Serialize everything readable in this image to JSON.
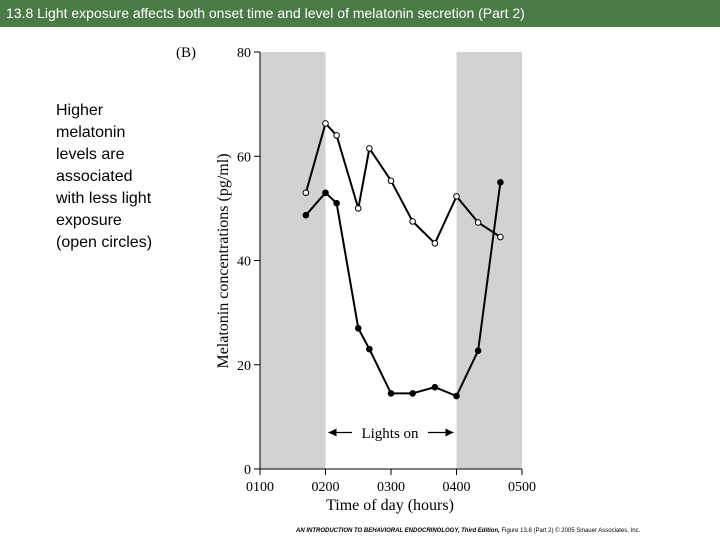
{
  "slide": {
    "title": "13.8  Light exposure affects both onset time and level of melatonin secretion (Part 2)",
    "note": "Higher melatonin levels are associated with less light exposure (open circles)",
    "footer_book": "AN INTRODUCTION TO BEHAVIORAL ENDOCRINOLOGY, Third Edition,",
    "footer_rest": "Figure 13.8 (Part 2)  © 2005 Sinauer Associates, Inc."
  },
  "chart_data": {
    "type": "line",
    "panel_label": "(B)",
    "xlabel": "Time of day (hours)",
    "ylabel": "Melatonin concentrations (pg/ml)",
    "xlim": [
      1,
      5
    ],
    "ylim": [
      0,
      80
    ],
    "x_ticks": [
      "0100",
      "0200",
      "0300",
      "0400",
      "0500"
    ],
    "y_ticks": [
      0,
      20,
      40,
      60,
      80
    ],
    "shaded_intervals": [
      [
        1,
        2
      ],
      [
        4,
        5
      ]
    ],
    "annotation": "Lights on",
    "annotation_range": [
      2,
      4
    ],
    "annotation_y": 7,
    "grid": false,
    "legend": "none",
    "colors": {
      "shading": "#d2d2d2",
      "line": "#000000",
      "title_bar": "#4a7a45"
    },
    "series": [
      {
        "marker": "open",
        "points": [
          [
            1.7,
            53
          ],
          [
            2.0,
            66.3
          ],
          [
            2.17,
            64
          ],
          [
            2.5,
            50
          ],
          [
            2.67,
            61.5
          ],
          [
            3.0,
            55.3
          ],
          [
            3.33,
            47.5
          ],
          [
            3.67,
            43.3
          ],
          [
            4.0,
            52.3
          ],
          [
            4.33,
            47.3
          ],
          [
            4.67,
            44.5
          ]
        ]
      },
      {
        "marker": "filled",
        "points": [
          [
            1.7,
            48.7
          ],
          [
            2.0,
            53
          ],
          [
            2.17,
            51
          ],
          [
            2.5,
            27
          ],
          [
            2.67,
            23
          ],
          [
            3.0,
            14.5
          ],
          [
            3.33,
            14.5
          ],
          [
            3.67,
            15.7
          ],
          [
            4.0,
            14
          ],
          [
            4.33,
            22.7
          ],
          [
            4.67,
            55
          ]
        ]
      }
    ]
  }
}
